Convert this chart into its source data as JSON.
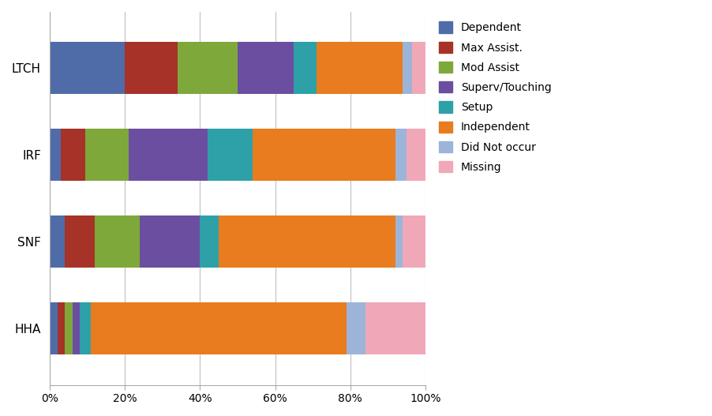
{
  "categories": [
    "LTCH",
    "IRF",
    "SNF",
    "HHA"
  ],
  "segments": [
    {
      "label": "Dependent",
      "color": "#4F6CA8",
      "values": [
        20.0,
        3.0,
        4.0,
        2.0
      ]
    },
    {
      "label": "Max Assist.",
      "color": "#A63228",
      "values": [
        14.0,
        6.5,
        8.0,
        2.0
      ]
    },
    {
      "label": "Mod Assist",
      "color": "#7EA83A",
      "values": [
        16.0,
        11.5,
        12.0,
        2.0
      ]
    },
    {
      "label": "Superv/Touching",
      "color": "#6B4EA0",
      "values": [
        15.0,
        21.0,
        16.0,
        2.0
      ]
    },
    {
      "label": "Setup",
      "color": "#2EA0A8",
      "values": [
        6.0,
        12.0,
        5.0,
        3.0
      ]
    },
    {
      "label": "Independent",
      "color": "#E87C1E",
      "values": [
        23.0,
        38.0,
        47.0,
        68.0
      ]
    },
    {
      "label": "Did Not occur",
      "color": "#9CB4D8",
      "values": [
        2.5,
        3.0,
        2.0,
        5.0
      ]
    },
    {
      "label": "Missing",
      "color": "#F0A8B8",
      "values": [
        3.5,
        5.0,
        6.0,
        16.0
      ]
    }
  ],
  "xlim": [
    0,
    100
  ],
  "xticks": [
    0,
    20,
    40,
    60,
    80,
    100
  ],
  "xticklabels": [
    "0%",
    "20%",
    "40%",
    "60%",
    "80%",
    "100%"
  ],
  "background_color": "#FFFFFF",
  "bar_height": 0.6,
  "legend_fontsize": 10,
  "tick_fontsize": 10,
  "ylabel_fontsize": 11,
  "grid_color": "#C0C0C0",
  "figsize": [
    9.02,
    5.27
  ],
  "dpi": 100
}
